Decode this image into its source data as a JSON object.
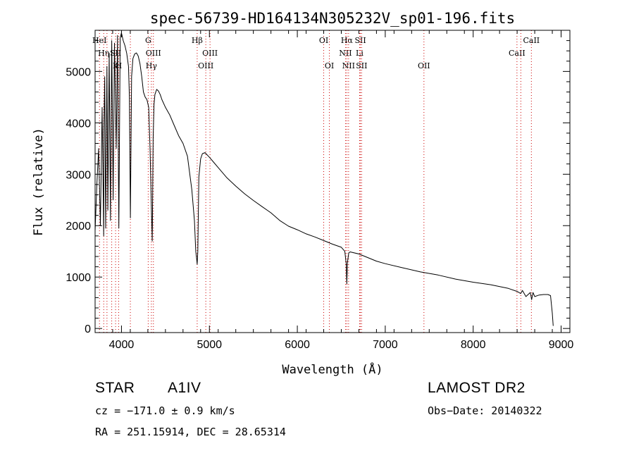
{
  "chart_data": {
    "type": "line",
    "title": "spec-56739-HD164134N305232V_sp01-196.fits",
    "xlabel": "Wavelength (Å)",
    "ylabel": "Flux (relative)",
    "xlim": [
      3700,
      9100
    ],
    "ylim": [
      -80,
      5800
    ],
    "x_ticks": [
      4000,
      5000,
      6000,
      7000,
      8000,
      9000
    ],
    "y_ticks": [
      0,
      1000,
      2000,
      3000,
      4000,
      5000
    ],
    "line_color": "#000000",
    "marker_color": "#cc0000",
    "grid": false,
    "series": [
      {
        "x": [
          3700,
          3720,
          3740,
          3760,
          3780,
          3798,
          3800,
          3810,
          3820,
          3835,
          3845,
          3860,
          3875,
          3889,
          3905,
          3920,
          3940,
          3955,
          3970,
          3985,
          4000,
          4020,
          4040,
          4060,
          4080,
          4090,
          4101,
          4115,
          4130,
          4150,
          4170,
          4190,
          4210,
          4230,
          4250,
          4270,
          4290,
          4310,
          4325,
          4340,
          4350,
          4360,
          4370,
          4380,
          4400,
          4420,
          4440,
          4460,
          4500,
          4550,
          4600,
          4650,
          4700,
          4750,
          4800,
          4830,
          4845,
          4855,
          4861,
          4868,
          4880,
          4900,
          4920,
          4950,
          5000,
          5050,
          5100,
          5200,
          5300,
          5400,
          5500,
          5600,
          5700,
          5800,
          5900,
          6000,
          6100,
          6200,
          6300,
          6400,
          6500,
          6540,
          6556,
          6563,
          6570,
          6585,
          6600,
          6700,
          6800,
          6900,
          7000,
          7200,
          7400,
          7600,
          7800,
          8000,
          8200,
          8400,
          8500,
          8540,
          8560,
          8600,
          8650,
          8665,
          8680,
          8700,
          8750,
          8800,
          8850,
          8880,
          8900,
          8910
        ],
        "y": [
          1900,
          2800,
          3500,
          2000,
          4300,
          1800,
          3900,
          4900,
          1950,
          5100,
          2300,
          5350,
          2100,
          5600,
          2500,
          5550,
          3500,
          5700,
          1950,
          5650,
          5750,
          5600,
          5500,
          5350,
          5100,
          4500,
          2150,
          4900,
          5250,
          5340,
          5360,
          5300,
          5150,
          4900,
          4600,
          4500,
          4450,
          4300,
          3500,
          2350,
          1700,
          3700,
          4350,
          4550,
          4650,
          4620,
          4550,
          4450,
          4300,
          4150,
          3950,
          3750,
          3600,
          3350,
          2700,
          2100,
          1500,
          1350,
          1250,
          1500,
          2950,
          3300,
          3400,
          3420,
          3330,
          3230,
          3130,
          2930,
          2770,
          2620,
          2490,
          2370,
          2250,
          2100,
          1990,
          1920,
          1840,
          1780,
          1710,
          1640,
          1580,
          1500,
          1250,
          870,
          1280,
          1470,
          1490,
          1450,
          1380,
          1310,
          1260,
          1180,
          1100,
          1040,
          960,
          900,
          850,
          780,
          720,
          680,
          740,
          620,
          700,
          560,
          700,
          620,
          650,
          660,
          660,
          640,
          300,
          50
        ]
      }
    ],
    "lines": [
      {
        "x": 3750,
        "labels": [
          "HeI",
          "",
          ""
        ],
        "emission": true
      },
      {
        "x": 3798,
        "labels": [
          "",
          "Hη",
          ""
        ],
        "emission": false
      },
      {
        "x": 3835,
        "labels": [
          "",
          "",
          ""
        ],
        "emission": false
      },
      {
        "x": 3889,
        "labels": [
          "",
          "",
          ""
        ],
        "emission": false
      },
      {
        "x": 3933,
        "labels": [
          "",
          "SII",
          "K"
        ],
        "emission": false
      },
      {
        "x": 3968,
        "labels": [
          "",
          "",
          "H"
        ],
        "emission": false
      },
      {
        "x": 4101,
        "labels": [
          "",
          "",
          ""
        ],
        "emission": false
      },
      {
        "x": 4304,
        "labels": [
          "G",
          "",
          ""
        ],
        "emission": false
      },
      {
        "x": 4340,
        "labels": [
          "",
          "",
          "Hγ"
        ],
        "emission": false
      },
      {
        "x": 4363,
        "labels": [
          "",
          "OIII",
          ""
        ],
        "emission": true
      },
      {
        "x": 4861,
        "labels": [
          "Hβ",
          "",
          ""
        ],
        "emission": false
      },
      {
        "x": 4959,
        "labels": [
          "",
          "",
          "OIII"
        ],
        "emission": true
      },
      {
        "x": 5007,
        "labels": [
          "",
          "OIII",
          ""
        ],
        "emission": true
      },
      {
        "x": 6300,
        "labels": [
          "OI",
          "",
          ""
        ],
        "emission": true
      },
      {
        "x": 6364,
        "labels": [
          "",
          "",
          "OI"
        ],
        "emission": true
      },
      {
        "x": 6548,
        "labels": [
          "",
          "NII",
          ""
        ],
        "emission": true
      },
      {
        "x": 6563,
        "labels": [
          "Hα",
          "",
          ""
        ],
        "emission": false
      },
      {
        "x": 6583,
        "labels": [
          "",
          "",
          "NII"
        ],
        "emission": true
      },
      {
        "x": 6708,
        "labels": [
          "",
          "Li",
          ""
        ],
        "emission": false
      },
      {
        "x": 6717,
        "labels": [
          "SII",
          "",
          ""
        ],
        "emission": true
      },
      {
        "x": 6731,
        "labels": [
          "",
          "",
          "SII"
        ],
        "emission": true
      },
      {
        "x": 7440,
        "labels": [
          "",
          "",
          "OII"
        ],
        "emission": true
      },
      {
        "x": 8498,
        "labels": [
          "",
          "CaII",
          ""
        ],
        "emission": false
      },
      {
        "x": 8542,
        "labels": [
          "",
          "",
          ""
        ],
        "emission": false
      },
      {
        "x": 8662,
        "labels": [
          "CaII",
          "",
          ""
        ],
        "emission": false
      }
    ]
  },
  "info": {
    "object_class": "STAR",
    "subclass": "A1IV",
    "survey": "LAMOST DR2",
    "cz": "cz = −171.0 ± 0.9 km/s",
    "obs_date": "Obs−Date: 20140322",
    "coords": "RA = 251.15914, DEC =  28.65314"
  }
}
